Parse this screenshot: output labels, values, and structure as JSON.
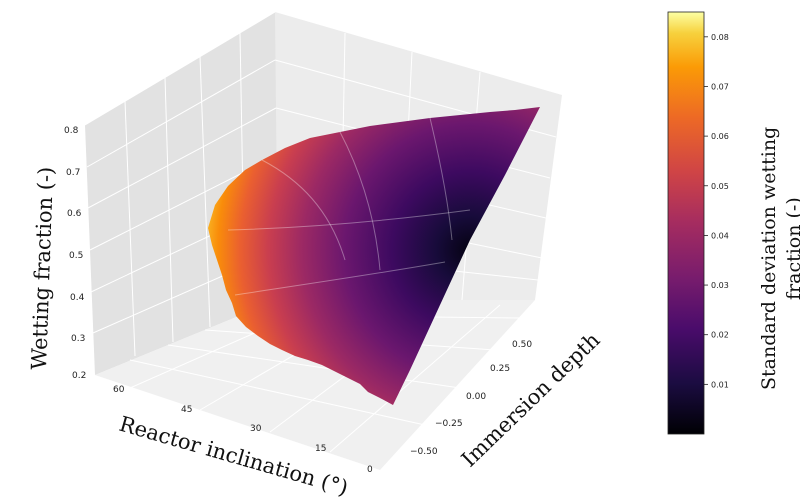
{
  "chart_data": {
    "type": "surface3d",
    "title": "",
    "x_axis": {
      "label": "Immersion depth",
      "ticks": [
        -0.5,
        -0.25,
        0.0,
        0.25,
        0.5
      ],
      "tick_labels": [
        "−0.50",
        "−0.25",
        "0.00",
        "0.25",
        "0.50"
      ],
      "range": [
        -0.6,
        0.6
      ]
    },
    "y_axis": {
      "label": "Reactor inclination (°)",
      "ticks": [
        0,
        15,
        30,
        45,
        60
      ],
      "tick_labels": [
        "0",
        "15",
        "30",
        "45",
        "60"
      ],
      "range": [
        0,
        60
      ]
    },
    "z_axis": {
      "label": "Wetting fraction (-)",
      "ticks": [
        0.2,
        0.3,
        0.4,
        0.5,
        0.6,
        0.7,
        0.8
      ],
      "tick_labels": [
        "0.2",
        "0.3",
        "0.4",
        "0.5",
        "0.6",
        "0.7",
        "0.8"
      ],
      "range": [
        0.2,
        0.8
      ]
    },
    "colorbar": {
      "label_line1": "Standard deviation wetting",
      "label_line2": "fraction (-)",
      "ticks": [
        0.01,
        0.02,
        0.03,
        0.04,
        0.05,
        0.06,
        0.07,
        0.08
      ],
      "tick_labels": [
        "0.01",
        "0.02",
        "0.03",
        "0.04",
        "0.05",
        "0.06",
        "0.07",
        "0.08"
      ],
      "range": [
        0.0,
        0.085
      ],
      "colormap": "inferno"
    },
    "surface_corners": [
      {
        "immersion_depth": -0.5,
        "reactor_inclination": 0,
        "wetting_fraction": 0.25,
        "std": 0.04
      },
      {
        "immersion_depth": 0.6,
        "reactor_inclination": 0,
        "wetting_fraction": 0.78,
        "std": 0.03
      },
      {
        "immersion_depth": 0.0,
        "reactor_inclination": 60,
        "wetting_fraction": 0.5,
        "std": 0.085
      },
      {
        "immersion_depth": 0.3,
        "reactor_inclination": 15,
        "wetting_fraction": 0.5,
        "std": 0.0
      }
    ],
    "grid": true
  }
}
